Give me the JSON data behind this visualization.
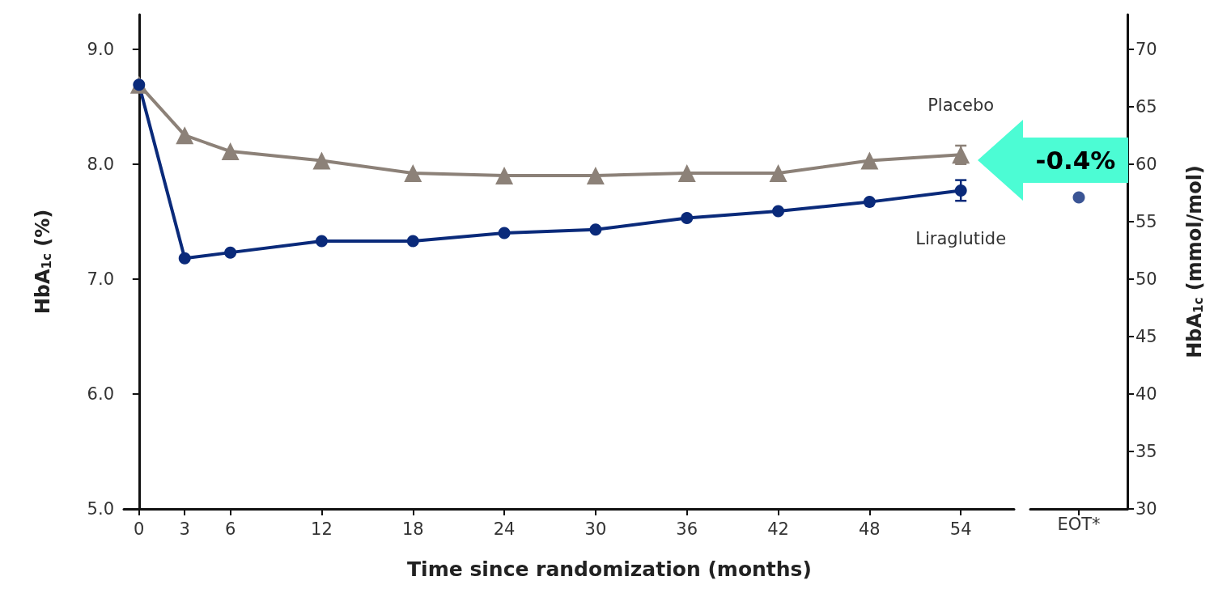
{
  "chart_data": [
    {
      "type": "line",
      "xlabel": "Time since randomization (months)",
      "ylabel": "HbA$_{1c}$ (%)",
      "x": [
        0,
        3,
        6,
        12,
        18,
        24,
        30,
        36,
        42,
        48,
        54
      ],
      "xlim": [
        -1,
        57.5
      ],
      "xticks": [
        0,
        3,
        6,
        12,
        18,
        24,
        30,
        36,
        42,
        48,
        54
      ],
      "ylim": [
        5,
        9.3
      ],
      "yticks": [
        {
          "value": 5,
          "label": "5.0"
        },
        {
          "value": 6,
          "label": "6.0"
        },
        {
          "value": 7,
          "label": "7.0"
        },
        {
          "value": 8,
          "label": "8.0"
        },
        {
          "value": 9,
          "label": "9.0"
        }
      ],
      "series": [
        {
          "name": "Placebo",
          "color": "#8c8178",
          "marker": "triangle",
          "values": [
            8.69,
            8.25,
            8.11,
            8.03,
            7.92,
            7.9,
            7.9,
            7.92,
            7.92,
            8.03,
            8.08
          ],
          "errors": [
            null,
            null,
            null,
            null,
            null,
            null,
            null,
            null,
            null,
            null,
            0.08
          ]
        },
        {
          "name": "Liraglutide",
          "color": "#0a2a7a",
          "marker": "circle",
          "values": [
            8.69,
            7.18,
            7.23,
            7.33,
            7.33,
            7.4,
            7.43,
            7.53,
            7.59,
            7.67,
            7.77
          ],
          "errors": [
            null,
            null,
            null,
            null,
            null,
            null,
            null,
            null,
            null,
            null,
            0.09
          ]
        }
      ],
      "grid": false,
      "legend": false,
      "line_style": "solid",
      "annotations": [
        "-0.4%"
      ]
    },
    {
      "type": "scatter",
      "categories": [
        "EOT*"
      ],
      "ylim": [
        5,
        9.3
      ],
      "y2label": "HbA$_{1c}$ (mmol/mol)",
      "y2lim": [
        30,
        73
      ],
      "y2ticks": [
        30,
        35,
        40,
        45,
        50,
        55,
        60,
        65,
        70
      ],
      "series": [
        {
          "color": "#8c8178",
          "marker": "triangle",
          "values": [
            null
          ]
        },
        {
          "color": "#0a2a7a",
          "marker": "circle",
          "values": [
            7.71
          ]
        }
      ],
      "grid": false,
      "legend": false
    }
  ]
}
